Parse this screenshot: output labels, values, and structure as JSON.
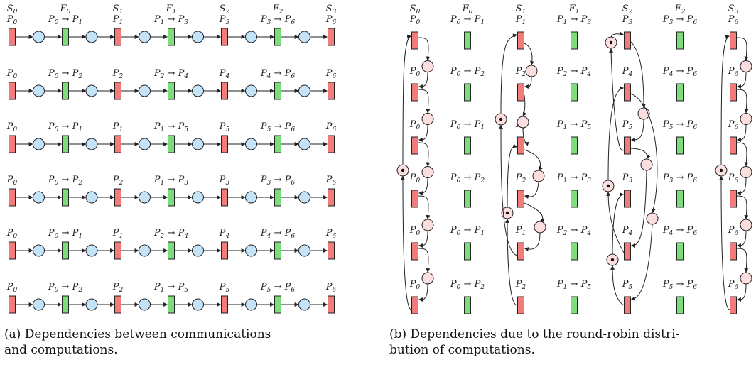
{
  "colors": {
    "data_place": "#f27b7b",
    "compute_trans": "#7ddd7b",
    "token_place_a": "#c3e3fb",
    "token_place_b": "#fcdede",
    "stroke": "#222222"
  },
  "panel_a": {
    "caption_line1": "(a) Dependencies between communications",
    "caption_line2": "and computations.",
    "headers": [
      "S0",
      "F0",
      "S1",
      "F1",
      "S2",
      "F2",
      "S3"
    ],
    "rows": [
      [
        "P0",
        "P0 → P1",
        "P1",
        "P1 → P3",
        "P3",
        "P3 → P6",
        "P6"
      ],
      [
        "P0",
        "P0 → P2",
        "P2",
        "P2 → P4",
        "P4",
        "P4 → P6",
        "P6"
      ],
      [
        "P0",
        "P0 → P1",
        "P1",
        "P1 → P5",
        "P5",
        "P5 → P6",
        "P6"
      ],
      [
        "P0",
        "P0 → P2",
        "P2",
        "P1 → P3",
        "P3",
        "P3 → P6",
        "P6"
      ],
      [
        "P0",
        "P0 → P1",
        "P1",
        "P2 → P4",
        "P4",
        "P4 → P6",
        "P6"
      ],
      [
        "P0",
        "P0 → P2",
        "P2",
        "P1 → P5",
        "P5",
        "P5 → P6",
        "P6"
      ]
    ]
  },
  "panel_b": {
    "caption_line1": "(b) Dependencies due to the round-robin distri-",
    "caption_line2": "bution of computations.",
    "headers": [
      "S0",
      "F0",
      "S1",
      "F1",
      "S2",
      "F2",
      "S3"
    ],
    "rows": [
      [
        "P0",
        "P0 → P1",
        "P1",
        "P1 → P3",
        "P3",
        "P3 → P6",
        "P6"
      ],
      [
        "P0",
        "P0 → P2",
        "P2",
        "P2 → P4",
        "P4",
        "P4 → P6",
        "P6"
      ],
      [
        "P0",
        "P0 → P1",
        "P1",
        "P1 → P5",
        "P5",
        "P5 → P6",
        "P6"
      ],
      [
        "P0",
        "P0 → P2",
        "P2",
        "P1 → P3",
        "P3",
        "P3 → P6",
        "P6"
      ],
      [
        "P0",
        "P0 → P1",
        "P1",
        "P2 → P4",
        "P4",
        "P4 → P6",
        "P6"
      ],
      [
        "P0",
        "P0 → P2",
        "P2",
        "P1 → P5",
        "P5",
        "P5 → P6",
        "P6"
      ]
    ]
  }
}
